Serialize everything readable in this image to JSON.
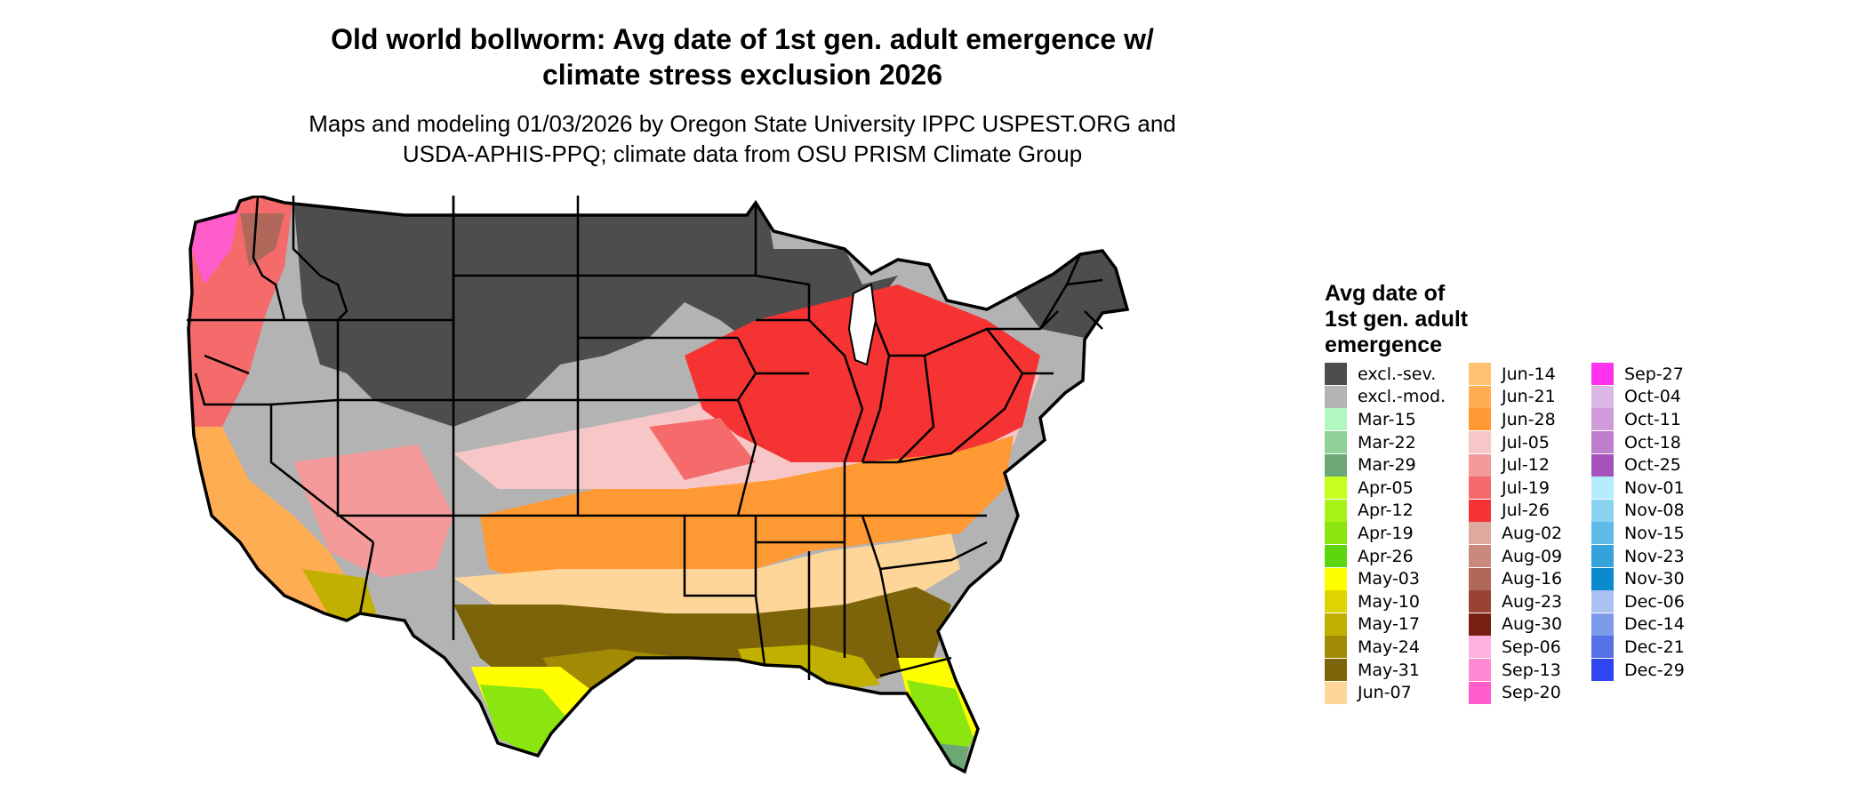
{
  "title_line1": "Old world bollworm: Avg date of 1st gen. adult emergence w/",
  "title_line2": "climate stress exclusion 2026",
  "subtitle_line1": "Maps and modeling 01/03/2026 by Oregon State University IPPC USPEST.ORG and",
  "subtitle_line2": "USDA-APHIS-PPQ; climate data from OSU PRISM Climate Group",
  "legend": {
    "title_line1": "Avg date of",
    "title_line2": "1st gen. adult",
    "title_line3": "emergence",
    "columns": [
      [
        {
          "label": "excl.-sev.",
          "color": "#4d4d4d"
        },
        {
          "label": "excl.-mod.",
          "color": "#b3b3b3"
        },
        {
          "label": "Mar-15",
          "color": "#b2f7bf"
        },
        {
          "label": "Mar-22",
          "color": "#8fd197"
        },
        {
          "label": "Mar-29",
          "color": "#6ca876"
        },
        {
          "label": "Apr-05",
          "color": "#c7ff1f"
        },
        {
          "label": "Apr-12",
          "color": "#a8f217"
        },
        {
          "label": "Apr-19",
          "color": "#8be60f"
        },
        {
          "label": "Apr-26",
          "color": "#5ed60f"
        },
        {
          "label": "May-03",
          "color": "#ffff00"
        },
        {
          "label": "May-10",
          "color": "#e0d400"
        },
        {
          "label": "May-17",
          "color": "#c2b000"
        },
        {
          "label": "May-24",
          "color": "#a38a05"
        },
        {
          "label": "May-31",
          "color": "#7d640a"
        },
        {
          "label": "Jun-07",
          "color": "#ffd699"
        }
      ],
      [
        {
          "label": "Jun-14",
          "color": "#ffc270"
        },
        {
          "label": "Jun-21",
          "color": "#ffad52"
        },
        {
          "label": "Jun-28",
          "color": "#ff9933"
        },
        {
          "label": "Jul-05",
          "color": "#f7c7c7"
        },
        {
          "label": "Jul-12",
          "color": "#f59a9a"
        },
        {
          "label": "Jul-19",
          "color": "#f56a6a"
        },
        {
          "label": "Jul-26",
          "color": "#f53333"
        },
        {
          "label": "Aug-02",
          "color": "#deaaa0"
        },
        {
          "label": "Aug-09",
          "color": "#c98a7d"
        },
        {
          "label": "Aug-16",
          "color": "#b0685a"
        },
        {
          "label": "Aug-23",
          "color": "#994433"
        },
        {
          "label": "Aug-30",
          "color": "#7a2010"
        },
        {
          "label": "Sep-06",
          "color": "#ffb3df"
        },
        {
          "label": "Sep-13",
          "color": "#ff8ad4"
        },
        {
          "label": "Sep-20",
          "color": "#ff5ccc"
        }
      ],
      [
        {
          "label": "Sep-27",
          "color": "#ff33ee"
        },
        {
          "label": "Oct-04",
          "color": "#dcb8e6"
        },
        {
          "label": "Oct-11",
          "color": "#cf9cd9"
        },
        {
          "label": "Oct-18",
          "color": "#bf7ecb"
        },
        {
          "label": "Oct-25",
          "color": "#a652bd"
        },
        {
          "label": "Nov-01",
          "color": "#b3ecff"
        },
        {
          "label": "Nov-08",
          "color": "#8ad4f2"
        },
        {
          "label": "Nov-15",
          "color": "#5ebbe6"
        },
        {
          "label": "Nov-23",
          "color": "#33a3d9"
        },
        {
          "label": "Nov-30",
          "color": "#0a8acc"
        },
        {
          "label": "Dec-06",
          "color": "#a8c1f0"
        },
        {
          "label": "Dec-14",
          "color": "#7d9aeb"
        },
        {
          "label": "Dec-21",
          "color": "#5670e6"
        },
        {
          "label": "Dec-29",
          "color": "#2f45f2"
        }
      ]
    ]
  }
}
